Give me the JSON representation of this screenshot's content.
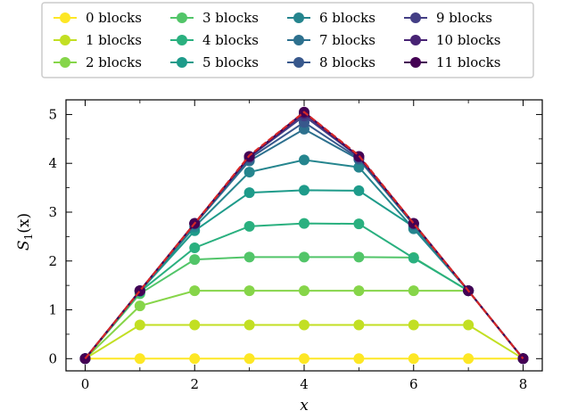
{
  "chart_data": {
    "type": "line",
    "xlabel": "x",
    "ylabel": "S_1(x)",
    "ylabel_main": "S",
    "ylabel_sub": "1",
    "ylabel_rest": "(x)",
    "xlim": [
      -0.35,
      8.35
    ],
    "ylim": [
      -0.25,
      5.3
    ],
    "xticks": [
      0,
      2,
      4,
      6,
      8
    ],
    "xticks_minor": [
      1,
      3,
      5,
      7
    ],
    "yticks": [
      0,
      1,
      2,
      3,
      4,
      5
    ],
    "grid": false,
    "legend_position": "top",
    "x": [
      0,
      1,
      2,
      3,
      4,
      5,
      6,
      7,
      8
    ],
    "series": [
      {
        "name": "0 blocks",
        "color": "#fde725",
        "values": [
          0,
          0,
          0,
          0,
          0,
          0,
          0,
          0,
          0
        ]
      },
      {
        "name": "1 blocks",
        "color": "#c2df23",
        "values": [
          0,
          0.69,
          0.69,
          0.69,
          0.69,
          0.69,
          0.69,
          0.69,
          0
        ]
      },
      {
        "name": "2 blocks",
        "color": "#86d549",
        "values": [
          0,
          1.08,
          1.39,
          1.39,
          1.39,
          1.39,
          1.39,
          1.39,
          0
        ]
      },
      {
        "name": "3 blocks",
        "color": "#52c569",
        "values": [
          0,
          1.33,
          2.03,
          2.08,
          2.08,
          2.08,
          2.07,
          1.39,
          0
        ]
      },
      {
        "name": "4 blocks",
        "color": "#2ab07f",
        "values": [
          0,
          1.37,
          2.27,
          2.71,
          2.77,
          2.76,
          2.06,
          1.39,
          0
        ]
      },
      {
        "name": "5 blocks",
        "color": "#1e9b8a",
        "values": [
          0,
          1.38,
          2.62,
          3.4,
          3.45,
          3.44,
          2.7,
          1.39,
          0
        ]
      },
      {
        "name": "6 blocks",
        "color": "#25858e",
        "values": [
          0,
          1.38,
          2.7,
          3.82,
          4.07,
          3.92,
          2.66,
          1.39,
          0
        ]
      },
      {
        "name": "7 blocks",
        "color": "#2d708e",
        "values": [
          0,
          1.39,
          2.75,
          4.05,
          4.7,
          4.08,
          2.74,
          1.39,
          0
        ]
      },
      {
        "name": "8 blocks",
        "color": "#38588c",
        "values": [
          0,
          1.39,
          2.77,
          4.1,
          4.84,
          4.1,
          2.77,
          1.39,
          0
        ]
      },
      {
        "name": "9 blocks",
        "color": "#433e85",
        "values": [
          0,
          1.39,
          2.77,
          4.13,
          4.97,
          4.13,
          2.77,
          1.39,
          0
        ]
      },
      {
        "name": "10 blocks",
        "color": "#482374",
        "values": [
          0,
          1.39,
          2.77,
          4.14,
          5.02,
          4.14,
          2.77,
          1.39,
          0
        ]
      },
      {
        "name": "11 blocks",
        "color": "#440154",
        "values": [
          0,
          1.39,
          2.77,
          4.14,
          5.05,
          4.14,
          2.77,
          1.39,
          0
        ]
      }
    ],
    "reference_line": {
      "color": "#d62728",
      "dashed": true,
      "values": [
        0,
        1.39,
        2.77,
        4.16,
        5.05,
        4.16,
        2.77,
        1.39,
        0
      ]
    }
  }
}
